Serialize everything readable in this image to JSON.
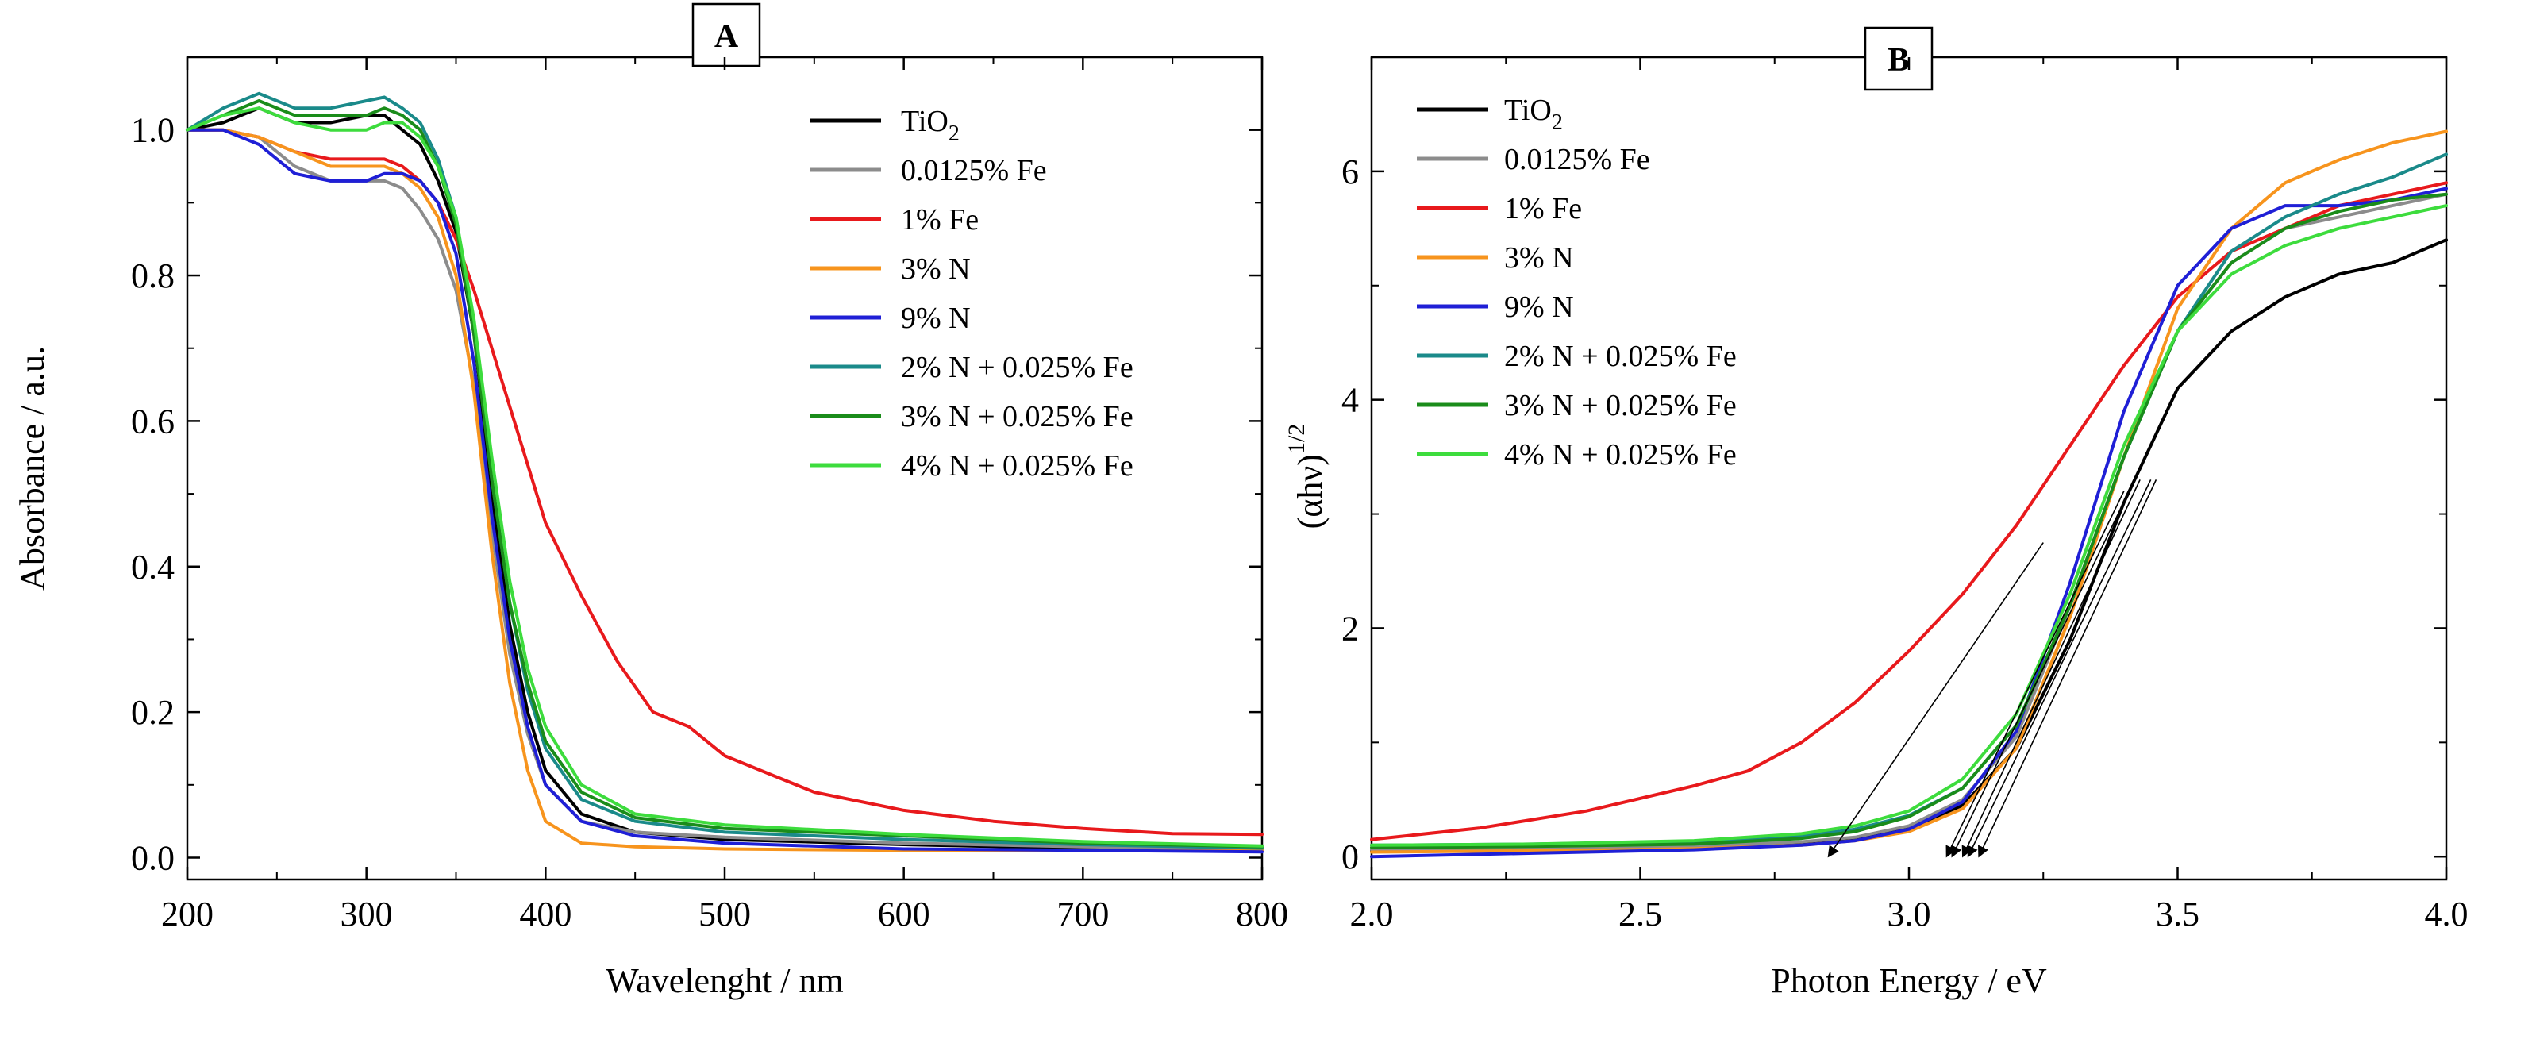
{
  "chart_data": [
    {
      "id": "A",
      "type": "line",
      "panel_label": "A",
      "xlabel": "Wavelenght / nm",
      "ylabel": "Absorbance / a.u.",
      "xlim": [
        200,
        800
      ],
      "ylim": [
        -0.03,
        1.1
      ],
      "xticks": [
        200,
        300,
        400,
        500,
        600,
        700,
        800
      ],
      "yticks": [
        0.0,
        0.2,
        0.4,
        0.6,
        0.8,
        1.0
      ],
      "xtick_labels": [
        "200",
        "300",
        "400",
        "500",
        "600",
        "700",
        "800"
      ],
      "ytick_labels": [
        "0.0",
        "0.2",
        "0.4",
        "0.6",
        "0.8",
        "1.0"
      ],
      "legend_position": "top-right",
      "series": [
        {
          "name": "TiO₂",
          "legend_main": "TiO",
          "legend_sub": "2",
          "color": "#000000",
          "x": [
            200,
            220,
            240,
            260,
            280,
            300,
            310,
            320,
            330,
            340,
            350,
            360,
            370,
            380,
            390,
            400,
            420,
            450,
            500,
            600,
            700,
            800
          ],
          "y": [
            1.0,
            1.01,
            1.03,
            1.01,
            1.01,
            1.02,
            1.02,
            1.0,
            0.98,
            0.93,
            0.86,
            0.72,
            0.5,
            0.32,
            0.2,
            0.12,
            0.06,
            0.035,
            0.025,
            0.018,
            0.013,
            0.01
          ]
        },
        {
          "name": "0.0125% Fe",
          "legend_main": "0.0125% Fe",
          "legend_sub": "",
          "color": "#8c8c8c",
          "x": [
            200,
            220,
            240,
            260,
            280,
            300,
            310,
            320,
            330,
            340,
            350,
            360,
            370,
            380,
            390,
            400,
            420,
            450,
            500,
            600,
            700,
            800
          ],
          "y": [
            1.0,
            1.0,
            0.99,
            0.95,
            0.93,
            0.93,
            0.93,
            0.92,
            0.89,
            0.85,
            0.78,
            0.65,
            0.45,
            0.28,
            0.17,
            0.1,
            0.05,
            0.035,
            0.028,
            0.02,
            0.015,
            0.012
          ]
        },
        {
          "name": "1% Fe",
          "legend_main": "1% Fe",
          "legend_sub": "",
          "color": "#e8191c",
          "x": [
            200,
            220,
            240,
            260,
            280,
            300,
            310,
            320,
            330,
            340,
            350,
            360,
            370,
            380,
            390,
            400,
            420,
            440,
            460,
            480,
            500,
            550,
            600,
            650,
            700,
            750,
            800
          ],
          "y": [
            1.0,
            1.0,
            0.99,
            0.97,
            0.96,
            0.96,
            0.96,
            0.95,
            0.93,
            0.9,
            0.85,
            0.78,
            0.7,
            0.62,
            0.54,
            0.46,
            0.36,
            0.27,
            0.2,
            0.18,
            0.14,
            0.09,
            0.065,
            0.05,
            0.04,
            0.033,
            0.032
          ]
        },
        {
          "name": "3% N",
          "legend_main": "3% N",
          "legend_sub": "",
          "color": "#f7941d",
          "x": [
            200,
            220,
            240,
            260,
            280,
            300,
            310,
            320,
            330,
            340,
            350,
            360,
            370,
            380,
            390,
            400,
            420,
            450,
            500,
            600,
            700,
            800
          ],
          "y": [
            1.0,
            1.0,
            0.99,
            0.97,
            0.95,
            0.95,
            0.95,
            0.94,
            0.92,
            0.88,
            0.8,
            0.64,
            0.42,
            0.24,
            0.12,
            0.05,
            0.02,
            0.015,
            0.012,
            0.01,
            0.01,
            0.01
          ]
        },
        {
          "name": "9% N",
          "legend_main": "9% N",
          "legend_sub": "",
          "color": "#1f1fd6",
          "x": [
            200,
            220,
            240,
            260,
            280,
            300,
            310,
            320,
            330,
            340,
            350,
            360,
            370,
            380,
            390,
            400,
            420,
            450,
            500,
            600,
            700,
            800
          ],
          "y": [
            1.0,
            1.0,
            0.98,
            0.94,
            0.93,
            0.93,
            0.94,
            0.94,
            0.93,
            0.9,
            0.83,
            0.68,
            0.47,
            0.3,
            0.18,
            0.1,
            0.05,
            0.03,
            0.02,
            0.012,
            0.01,
            0.008
          ]
        },
        {
          "name": "2% N + 0.025% Fe",
          "legend_main": "2% N + 0.025% Fe",
          "legend_sub": "",
          "color": "#1a8a8a",
          "x": [
            200,
            220,
            240,
            260,
            280,
            300,
            310,
            320,
            330,
            340,
            350,
            360,
            370,
            380,
            390,
            400,
            420,
            450,
            500,
            600,
            700,
            800
          ],
          "y": [
            1.0,
            1.03,
            1.05,
            1.03,
            1.03,
            1.04,
            1.045,
            1.03,
            1.01,
            0.96,
            0.88,
            0.73,
            0.52,
            0.35,
            0.23,
            0.15,
            0.08,
            0.05,
            0.035,
            0.025,
            0.018,
            0.013
          ]
        },
        {
          "name": "3% N + 0.025% Fe",
          "legend_main": "3% N + 0.025% Fe",
          "legend_sub": "",
          "color": "#1a8c1a",
          "x": [
            200,
            220,
            240,
            260,
            280,
            300,
            310,
            320,
            330,
            340,
            350,
            360,
            370,
            380,
            390,
            400,
            420,
            450,
            500,
            600,
            700,
            800
          ],
          "y": [
            1.0,
            1.02,
            1.04,
            1.02,
            1.02,
            1.02,
            1.03,
            1.02,
            1.0,
            0.95,
            0.87,
            0.72,
            0.52,
            0.35,
            0.24,
            0.16,
            0.09,
            0.055,
            0.04,
            0.03,
            0.02,
            0.015
          ]
        },
        {
          "name": "4% N + 0.025% Fe",
          "legend_main": "4% N + 0.025% Fe",
          "legend_sub": "",
          "color": "#3ddc3d",
          "x": [
            200,
            220,
            240,
            260,
            280,
            300,
            310,
            320,
            330,
            340,
            350,
            360,
            370,
            380,
            390,
            400,
            420,
            450,
            500,
            600,
            700,
            800
          ],
          "y": [
            1.0,
            1.02,
            1.03,
            1.01,
            1.0,
            1.0,
            1.01,
            1.01,
            0.99,
            0.95,
            0.88,
            0.74,
            0.55,
            0.38,
            0.26,
            0.18,
            0.1,
            0.06,
            0.045,
            0.032,
            0.022,
            0.016
          ]
        }
      ]
    },
    {
      "id": "B",
      "type": "line",
      "panel_label": "B",
      "xlabel": "Photon Energy / eV",
      "ylabel_main": "(αhν)",
      "ylabel_sup": "1/2",
      "xlim": [
        2.0,
        4.0
      ],
      "ylim": [
        -0.2,
        7.0
      ],
      "xticks": [
        2.0,
        2.5,
        3.0,
        3.5,
        4.0
      ],
      "yticks": [
        0,
        2,
        4,
        6
      ],
      "xtick_labels": [
        "2.0",
        "2.5",
        "3.0",
        "3.5",
        "4.0"
      ],
      "ytick_labels": [
        "0",
        "2",
        "4",
        "6"
      ],
      "legend_position": "top-left",
      "series": [
        {
          "name": "TiO₂",
          "legend_main": "TiO",
          "legend_sub": "2",
          "color": "#000000",
          "x": [
            2.0,
            2.3,
            2.6,
            2.8,
            2.9,
            3.0,
            3.1,
            3.2,
            3.3,
            3.4,
            3.5,
            3.6,
            3.7,
            3.8,
            3.9,
            4.0
          ],
          "y": [
            0.05,
            0.06,
            0.08,
            0.12,
            0.16,
            0.25,
            0.45,
            0.95,
            1.9,
            3.1,
            4.1,
            4.6,
            4.9,
            5.1,
            5.2,
            5.4
          ]
        },
        {
          "name": "0.0125% Fe",
          "legend_main": "0.0125% Fe",
          "legend_sub": "",
          "color": "#8c8c8c",
          "x": [
            2.0,
            2.3,
            2.6,
            2.8,
            2.9,
            3.0,
            3.1,
            3.2,
            3.3,
            3.4,
            3.5,
            3.6,
            3.7,
            3.8,
            3.9,
            4.0
          ],
          "y": [
            0.06,
            0.07,
            0.09,
            0.13,
            0.17,
            0.27,
            0.5,
            1.05,
            2.2,
            3.5,
            4.6,
            5.2,
            5.5,
            5.6,
            5.7,
            5.8
          ]
        },
        {
          "name": "1% Fe",
          "legend_main": "1% Fe",
          "legend_sub": "",
          "color": "#e8191c",
          "x": [
            2.0,
            2.2,
            2.4,
            2.6,
            2.7,
            2.8,
            2.9,
            3.0,
            3.1,
            3.2,
            3.3,
            3.4,
            3.5,
            3.6,
            3.7,
            3.8,
            3.9,
            4.0
          ],
          "y": [
            0.15,
            0.25,
            0.4,
            0.62,
            0.75,
            1.0,
            1.35,
            1.8,
            2.3,
            2.9,
            3.6,
            4.3,
            4.9,
            5.3,
            5.5,
            5.7,
            5.8,
            5.9
          ]
        },
        {
          "name": "3% N",
          "legend_main": "3% N",
          "legend_sub": "",
          "color": "#f7941d",
          "x": [
            2.0,
            2.3,
            2.6,
            2.8,
            2.9,
            3.0,
            3.1,
            3.2,
            3.3,
            3.4,
            3.5,
            3.6,
            3.7,
            3.8,
            3.9,
            4.0
          ],
          "y": [
            0.04,
            0.05,
            0.07,
            0.1,
            0.14,
            0.22,
            0.42,
            0.95,
            2.1,
            3.5,
            4.8,
            5.5,
            5.9,
            6.1,
            6.25,
            6.35
          ]
        },
        {
          "name": "9% N",
          "legend_main": "9% N",
          "legend_sub": "",
          "color": "#1f1fd6",
          "x": [
            2.0,
            2.3,
            2.6,
            2.8,
            2.9,
            3.0,
            3.1,
            3.2,
            3.3,
            3.4,
            3.5,
            3.6,
            3.7,
            3.8,
            3.9,
            4.0
          ],
          "y": [
            0.0,
            0.03,
            0.06,
            0.1,
            0.14,
            0.24,
            0.48,
            1.1,
            2.4,
            3.9,
            5.0,
            5.5,
            5.7,
            5.7,
            5.75,
            5.85
          ]
        },
        {
          "name": "2% N + 0.025% Fe",
          "legend_main": "2% N + 0.025% Fe",
          "legend_sub": "",
          "color": "#1a8a8a",
          "x": [
            2.0,
            2.3,
            2.6,
            2.8,
            2.9,
            3.0,
            3.1,
            3.2,
            3.3,
            3.4,
            3.5,
            3.6,
            3.7,
            3.8,
            3.9,
            4.0
          ],
          "y": [
            0.1,
            0.11,
            0.13,
            0.18,
            0.24,
            0.36,
            0.6,
            1.15,
            2.2,
            3.5,
            4.6,
            5.3,
            5.6,
            5.8,
            5.95,
            6.15
          ]
        },
        {
          "name": "3% N + 0.025% Fe",
          "legend_main": "3% N + 0.025% Fe",
          "legend_sub": "",
          "color": "#1a8c1a",
          "x": [
            2.0,
            2.3,
            2.6,
            2.8,
            2.9,
            3.0,
            3.1,
            3.2,
            3.3,
            3.4,
            3.5,
            3.6,
            3.7,
            3.8,
            3.9,
            4.0
          ],
          "y": [
            0.08,
            0.09,
            0.11,
            0.16,
            0.22,
            0.35,
            0.6,
            1.15,
            2.2,
            3.5,
            4.6,
            5.2,
            5.5,
            5.65,
            5.75,
            5.8
          ]
        },
        {
          "name": "4% N + 0.025% Fe",
          "legend_main": "4% N + 0.025% Fe",
          "legend_sub": "",
          "color": "#3ddc3d",
          "x": [
            2.0,
            2.3,
            2.6,
            2.8,
            2.9,
            3.0,
            3.1,
            3.2,
            3.3,
            3.4,
            3.5,
            3.6,
            3.7,
            3.8,
            3.9,
            4.0
          ],
          "y": [
            0.1,
            0.11,
            0.14,
            0.2,
            0.27,
            0.4,
            0.68,
            1.25,
            2.3,
            3.6,
            4.6,
            5.1,
            5.35,
            5.5,
            5.6,
            5.7
          ]
        }
      ],
      "tangent_lines": [
        {
          "from": [
            3.25,
            2.75
          ],
          "to": [
            2.85,
            0.0
          ]
        },
        {
          "from": [
            3.4,
            3.2
          ],
          "to": [
            3.07,
            0.0
          ]
        },
        {
          "from": [
            3.42,
            3.3
          ],
          "to": [
            3.08,
            0.0
          ]
        },
        {
          "from": [
            3.43,
            3.3
          ],
          "to": [
            3.1,
            0.0
          ]
        },
        {
          "from": [
            3.45,
            3.3
          ],
          "to": [
            3.11,
            0.0
          ]
        },
        {
          "from": [
            3.46,
            3.3
          ],
          "to": [
            3.13,
            0.0
          ]
        }
      ]
    }
  ]
}
